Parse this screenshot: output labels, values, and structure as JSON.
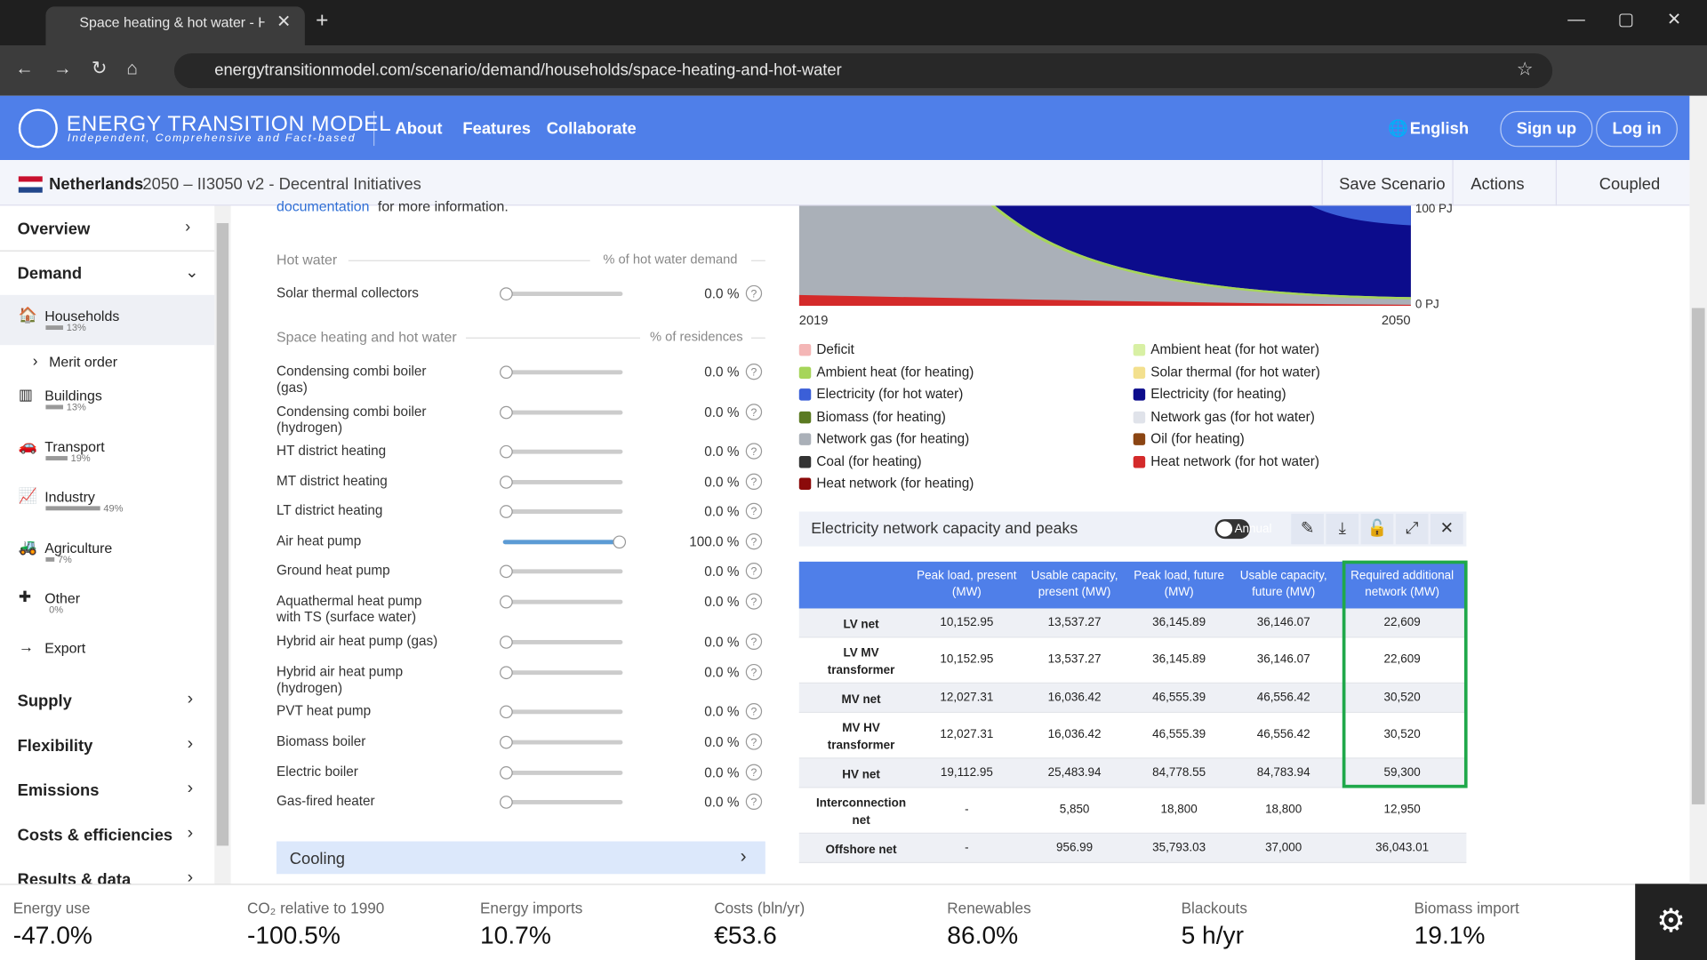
{
  "browser": {
    "tab_title": "Space heating & hot water - Ho",
    "url": "energytransitionmodel.com/scenario/demand/households/space-heating-and-hot-water"
  },
  "header": {
    "brand": "ENERGY TRANSITION MODEL",
    "tagline": "Independent, Comprehensive and Fact-based",
    "links": [
      "About",
      "Features",
      "Collaborate"
    ],
    "language": "English",
    "sign_up": "Sign up",
    "log_in": "Log in"
  },
  "scenario": {
    "country": "Netherlands",
    "title": "2050 – II3050 v2 - Decentral Initiatives",
    "actions": [
      "Save Scenario",
      "Actions",
      "Coupled"
    ]
  },
  "sidebar": {
    "top": [
      "Overview",
      "Demand"
    ],
    "items": [
      {
        "label": "Households",
        "share": "13%"
      },
      {
        "label": "Merit order"
      },
      {
        "label": "Buildings",
        "share": "13%"
      },
      {
        "label": "Transport",
        "share": "19%"
      },
      {
        "label": "Industry",
        "share": "49%"
      },
      {
        "label": "Agriculture",
        "share": "7%"
      },
      {
        "label": "Other",
        "share": "0%"
      },
      {
        "label": "Export"
      }
    ],
    "bottom": [
      "Supply",
      "Flexibility",
      "Emissions",
      "Costs & efficiencies",
      "Results & data"
    ]
  },
  "intro": {
    "link": "documentation",
    "text": "for more information."
  },
  "hot_water": {
    "heading": "Hot water",
    "unit": "% of hot water demand",
    "sliders": [
      {
        "label": "Solar thermal collectors",
        "value": 0,
        "value_label": "0.0 %"
      }
    ]
  },
  "space_heating": {
    "heading": "Space heating and hot water",
    "unit": "% of residences",
    "sliders": [
      {
        "label": "Condensing combi boiler (gas)",
        "value": 0,
        "value_label": "0.0 %"
      },
      {
        "label": "Condensing combi boiler (hydrogen)",
        "value": 0,
        "value_label": "0.0 %"
      },
      {
        "label": "HT district heating",
        "value": 0,
        "value_label": "0.0 %"
      },
      {
        "label": "MT district heating",
        "value": 0,
        "value_label": "0.0 %"
      },
      {
        "label": "LT district heating",
        "value": 0,
        "value_label": "0.0 %"
      },
      {
        "label": "Air heat pump",
        "value": 100,
        "value_label": "100.0 %"
      },
      {
        "label": "Ground heat pump",
        "value": 0,
        "value_label": "0.0 %"
      },
      {
        "label": "Aquathermal heat pump with TS (surface water)",
        "value": 0,
        "value_label": "0.0 %"
      },
      {
        "label": "Hybrid air heat pump (gas)",
        "value": 0,
        "value_label": "0.0 %"
      },
      {
        "label": "Hybrid air heat pump (hydrogen)",
        "value": 0,
        "value_label": "0.0 %"
      },
      {
        "label": "PVT heat pump",
        "value": 0,
        "value_label": "0.0 %"
      },
      {
        "label": "Biomass boiler",
        "value": 0,
        "value_label": "0.0 %"
      },
      {
        "label": "Electric boiler",
        "value": 0,
        "value_label": "0.0 %"
      },
      {
        "label": "Gas-fired heater",
        "value": 0,
        "value_label": "0.0 %"
      }
    ]
  },
  "cooling": "Cooling",
  "chart": {
    "x_start": "2019",
    "x_end": "2050",
    "y_top": "100 PJ",
    "y_bottom": "0 PJ",
    "legend": [
      {
        "name": "Deficit",
        "color": "#f4b6b6"
      },
      {
        "name": "Ambient heat (for heating)",
        "color": "#a6d55a"
      },
      {
        "name": "Electricity (for hot water)",
        "color": "#3b5fd8"
      },
      {
        "name": "Biomass (for heating)",
        "color": "#5b7a22"
      },
      {
        "name": "Network gas (for heating)",
        "color": "#aab0b8"
      },
      {
        "name": "Coal (for heating)",
        "color": "#333333"
      },
      {
        "name": "Heat network (for heating)",
        "color": "#8b0a0a"
      },
      {
        "name": "Ambient heat (for hot water)",
        "color": "#d8f0a4"
      },
      {
        "name": "Solar thermal (for hot water)",
        "color": "#f3e08e"
      },
      {
        "name": "Electricity (for heating)",
        "color": "#0c0c8c"
      },
      {
        "name": "Network gas (for hot water)",
        "color": "#e0e3ea"
      },
      {
        "name": "Oil (for heating)",
        "color": "#8b4513"
      },
      {
        "name": "Heat network (for hot water)",
        "color": "#d42a2a"
      }
    ]
  },
  "table": {
    "title": "Electricity network capacity and peaks",
    "toggle": "Annual",
    "columns": [
      "Peak load, present (MW)",
      "Usable capacity, present (MW)",
      "Peak load, future (MW)",
      "Usable capacity, future (MW)",
      "Required additional network (MW)"
    ],
    "rows": [
      {
        "label": "LV net",
        "cells": [
          "10,152.95",
          "13,537.27",
          "36,145.89",
          "36,146.07",
          "22,609"
        ]
      },
      {
        "label": "LV MV transformer",
        "cells": [
          "10,152.95",
          "13,537.27",
          "36,145.89",
          "36,146.07",
          "22,609"
        ]
      },
      {
        "label": "MV net",
        "cells": [
          "12,027.31",
          "16,036.42",
          "46,555.39",
          "46,556.42",
          "30,520"
        ]
      },
      {
        "label": "MV HV transformer",
        "cells": [
          "12,027.31",
          "16,036.42",
          "46,555.39",
          "46,556.42",
          "30,520"
        ]
      },
      {
        "label": "HV net",
        "cells": [
          "19,112.95",
          "25,483.94",
          "84,778.55",
          "84,783.94",
          "59,300"
        ]
      },
      {
        "label": "Interconnection net",
        "cells": [
          "-",
          "5,850",
          "18,800",
          "18,800",
          "12,950"
        ]
      },
      {
        "label": "Offshore net",
        "cells": [
          "-",
          "956.99",
          "35,793.03",
          "37,000",
          "36,043.01"
        ]
      }
    ]
  },
  "kpis": [
    {
      "label": "Energy use",
      "value": "-47.0%"
    },
    {
      "label": "CO₂ relative to 1990",
      "value": "-100.5%"
    },
    {
      "label": "Energy imports",
      "value": "10.7%"
    },
    {
      "label": "Costs (bln/yr)",
      "value": "€53.6"
    },
    {
      "label": "Renewables",
      "value": "86.0%"
    },
    {
      "label": "Blackouts",
      "value": "5 h/yr"
    },
    {
      "label": "Biomass import",
      "value": "19.1%"
    }
  ]
}
